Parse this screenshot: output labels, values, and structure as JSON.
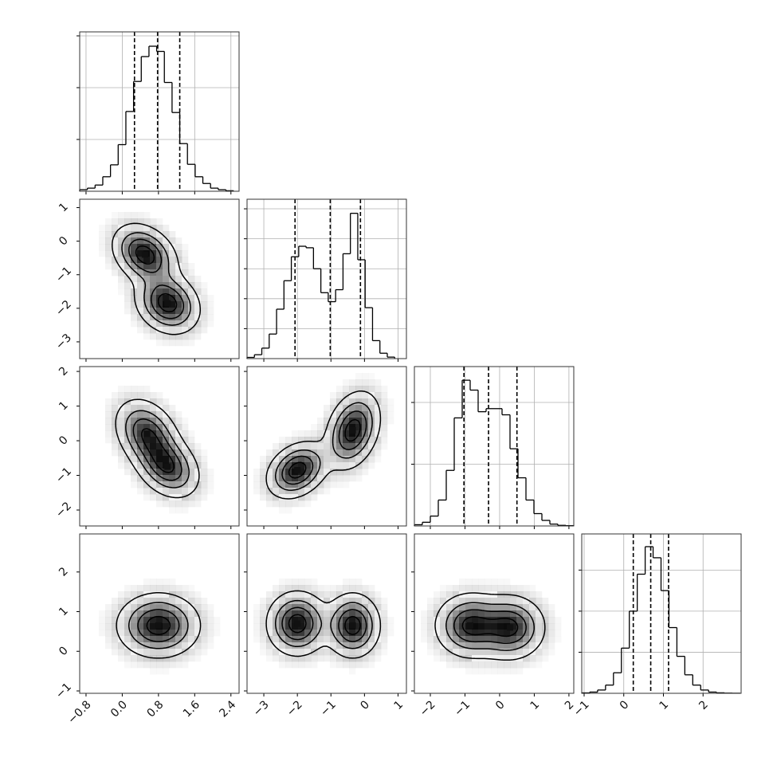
{
  "chart_data": {
    "type": "corner",
    "grid": true,
    "params": [
      {
        "lim": [
          -0.94,
          2.58
        ],
        "ticks": [
          {
            "value": -0.8,
            "label": "−0.8"
          },
          {
            "value": 0,
            "label": "0.0"
          },
          0.8,
          1.6,
          2.4
        ],
        "quantiles": [
          0.27,
          0.78,
          1.27
        ],
        "hist": {
          "bins": [
            -0.94,
            -0.77,
            -0.6,
            -0.43,
            -0.26,
            -0.09,
            0.08,
            0.25,
            0.42,
            0.59,
            0.76,
            0.93,
            1.1,
            1.27,
            1.44,
            1.61,
            1.78,
            1.95,
            2.12,
            2.29,
            2.46
          ],
          "counts": [
            30,
            60,
            120,
            280,
            510,
            900,
            1540,
            2120,
            2600,
            2800,
            2700,
            2100,
            1520,
            920,
            520,
            280,
            150,
            60,
            30,
            10
          ],
          "ylim": [
            0,
            3077
          ],
          "yticks": [
            1000,
            2000,
            3000
          ]
        }
      },
      {
        "lim": [
          -3.5,
          1.25
        ],
        "ticks": [
          {
            "value": -3,
            "label": "−3"
          },
          {
            "value": -2,
            "label": "−2"
          },
          {
            "value": -1,
            "label": "−1"
          },
          0,
          1
        ],
        "quantiles": [
          -2.07,
          -1.02,
          -0.12
        ],
        "hist": {
          "bins": [
            -3.5,
            -3.28,
            -3.06,
            -2.84,
            -2.62,
            -2.4,
            -2.18,
            -1.96,
            -1.74,
            -1.52,
            -1.3,
            -1.08,
            -0.86,
            -0.64,
            -0.42,
            -0.2,
            0.02,
            0.24,
            0.46,
            0.68,
            0.9
          ],
          "counts": [
            40,
            130,
            350,
            820,
            1650,
            2600,
            3400,
            3750,
            3700,
            3000,
            2200,
            1900,
            2300,
            3500,
            4850,
            3300,
            1700,
            600,
            180,
            50
          ],
          "ylim": [
            0,
            5320
          ],
          "yticks": [
            1000,
            2000,
            3000,
            4000,
            5000
          ]
        }
      },
      {
        "lim": [
          -2.46,
          2.14
        ],
        "ticks": [
          {
            "value": -2,
            "label": "−2"
          },
          {
            "value": -1,
            "label": "−1"
          },
          0,
          1,
          2
        ],
        "quantiles": [
          -1.03,
          -0.32,
          0.5
        ],
        "hist": {
          "bins": [
            -2.46,
            -2.23,
            -2.0,
            -1.77,
            -1.54,
            -1.31,
            -1.08,
            -0.85,
            -0.62,
            -0.39,
            -0.16,
            0.07,
            0.3,
            0.53,
            0.76,
            0.99,
            1.22,
            1.45,
            1.68,
            1.91,
            2.14
          ],
          "counts": [
            20,
            60,
            160,
            420,
            900,
            1750,
            2360,
            2200,
            1850,
            1900,
            1900,
            1800,
            1250,
            780,
            420,
            200,
            90,
            30,
            10,
            5
          ],
          "ylim": [
            0,
            2581
          ],
          "yticks": [
            1000,
            2000
          ]
        }
      },
      {
        "lim": [
          -1.06,
          2.96
        ],
        "ticks": [
          {
            "value": -1,
            "label": "−1"
          },
          0,
          1,
          2
        ],
        "quantiles": [
          0.24,
          0.68,
          1.13
        ],
        "hist": {
          "bins": [
            -1.06,
            -0.86,
            -0.66,
            -0.46,
            -0.26,
            -0.06,
            0.14,
            0.34,
            0.54,
            0.74,
            0.94,
            1.14,
            1.34,
            1.54,
            1.74,
            1.94,
            2.14,
            2.34,
            2.54,
            2.74,
            2.94
          ],
          "counts": [
            10,
            30,
            80,
            200,
            500,
            1100,
            2000,
            2900,
            3570,
            3300,
            2500,
            1600,
            900,
            450,
            200,
            80,
            30,
            12,
            5,
            2
          ],
          "ylim": [
            0,
            3880
          ],
          "yticks": [
            1000,
            2000,
            3000
          ]
        }
      }
    ],
    "panels": [
      {
        "x_param": 0,
        "y_param": 1,
        "blobs": [
          {
            "x": 0.5,
            "y": -0.4,
            "sx": 0.35,
            "sy": 0.45,
            "rho": -0.3
          },
          {
            "x": 1.0,
            "y": -1.85,
            "sx": 0.35,
            "sy": 0.45,
            "rho": -0.2
          }
        ]
      },
      {
        "x_param": 0,
        "y_param": 2,
        "blobs": [
          {
            "x": 0.55,
            "y": 0.2,
            "sx": 0.35,
            "sy": 0.5,
            "rho": -0.3
          },
          {
            "x": 1.0,
            "y": -0.75,
            "sx": 0.35,
            "sy": 0.45,
            "rho": -0.3
          }
        ]
      },
      {
        "x_param": 1,
        "y_param": 2,
        "blobs": [
          {
            "x": -2.0,
            "y": -0.85,
            "sx": 0.45,
            "sy": 0.4,
            "rho": 0.3
          },
          {
            "x": -0.35,
            "y": 0.3,
            "sx": 0.4,
            "sy": 0.55,
            "rho": 0.3
          }
        ]
      },
      {
        "x_param": 0,
        "y_param": 3,
        "blobs": [
          {
            "x": 0.8,
            "y": 0.65,
            "sx": 0.45,
            "sy": 0.4,
            "rho": 0
          }
        ]
      },
      {
        "x_param": 1,
        "y_param": 3,
        "blobs": [
          {
            "x": -2.0,
            "y": 0.7,
            "sx": 0.45,
            "sy": 0.4,
            "rho": 0
          },
          {
            "x": -0.35,
            "y": 0.65,
            "sx": 0.4,
            "sy": 0.4,
            "rho": 0
          }
        ]
      },
      {
        "x_param": 2,
        "y_param": 3,
        "blobs": [
          {
            "x": -0.85,
            "y": 0.65,
            "sx": 0.5,
            "sy": 0.4,
            "rho": 0
          },
          {
            "x": 0.3,
            "y": 0.6,
            "sx": 0.5,
            "sy": 0.4,
            "rho": 0
          }
        ]
      }
    ]
  }
}
